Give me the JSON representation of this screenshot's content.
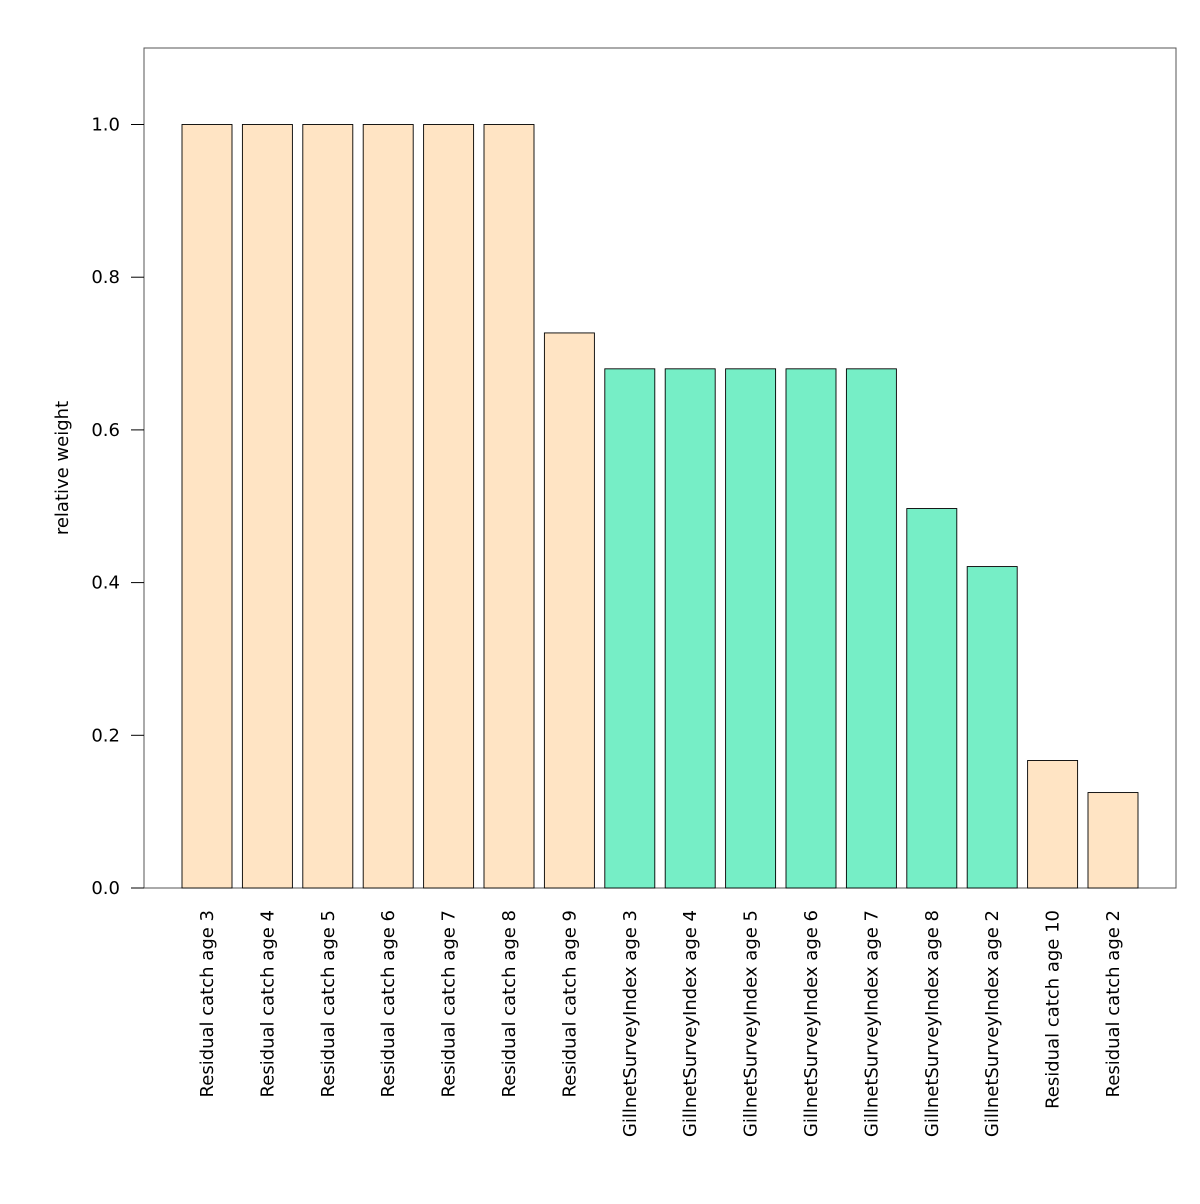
{
  "chart_data": {
    "type": "bar",
    "title": "",
    "xlabel": "",
    "ylabel": "relative weight",
    "ylim": [
      0,
      1.1
    ],
    "yticks": [
      0.0,
      0.2,
      0.4,
      0.6,
      0.8,
      1.0
    ],
    "ytick_labels": [
      "0.0",
      "0.2",
      "0.4",
      "0.6",
      "0.8",
      "1.0"
    ],
    "grid": false,
    "legend": "none",
    "categories": [
      "Residual catch age 3",
      "Residual catch age 4",
      "Residual catch age 5",
      "Residual catch age 6",
      "Residual catch age 7",
      "Residual catch age 8",
      "Residual catch age 9",
      "GillnetSurveyIndex age 3",
      "GillnetSurveyIndex age 4",
      "GillnetSurveyIndex age 5",
      "GillnetSurveyIndex age 6",
      "GillnetSurveyIndex age 7",
      "GillnetSurveyIndex age 8",
      "GillnetSurveyIndex age 2",
      "Residual catch age 10",
      "Residual catch age 2"
    ],
    "values": [
      1.0,
      1.0,
      1.0,
      1.0,
      1.0,
      1.0,
      0.727,
      0.68,
      0.68,
      0.68,
      0.68,
      0.68,
      0.497,
      0.421,
      0.167,
      0.125
    ],
    "groups": [
      "catch",
      "catch",
      "catch",
      "catch",
      "catch",
      "catch",
      "catch",
      "survey",
      "survey",
      "survey",
      "survey",
      "survey",
      "survey",
      "survey",
      "catch",
      "catch"
    ],
    "colors": {
      "catch": "#FFE4C4",
      "survey": "#76EEC6",
      "bar_edge": "#000000",
      "frame": "#555555"
    }
  }
}
